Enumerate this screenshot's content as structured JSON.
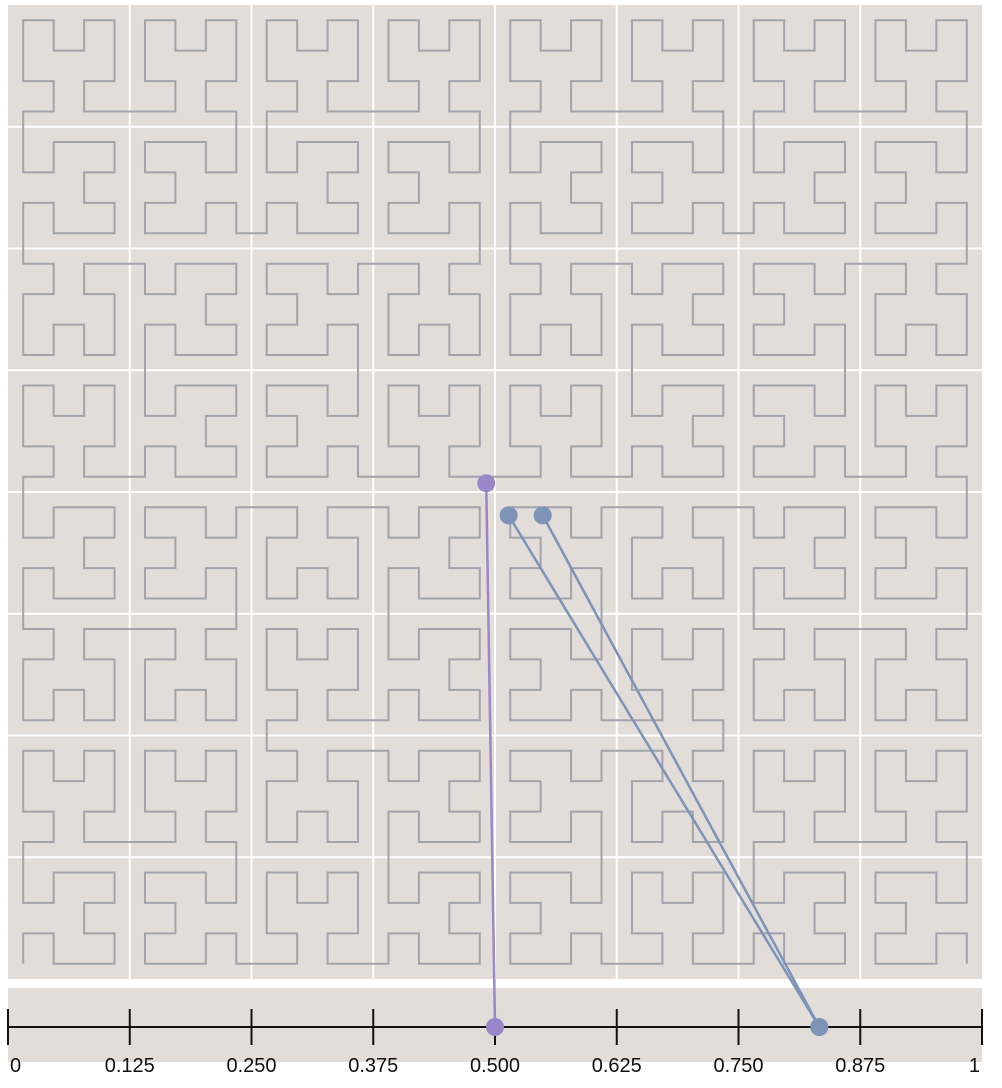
{
  "chart_data": {
    "type": "diagram",
    "curve": "hilbert",
    "curve_order": 5,
    "grid_divisions": 8,
    "axis": {
      "range": [
        0,
        1
      ],
      "tick_values": [
        0,
        0.125,
        0.25,
        0.375,
        0.5,
        0.625,
        0.75,
        0.875,
        1
      ],
      "tick_labels": [
        "0",
        "0.125",
        "0.250",
        "0.375",
        "0.500",
        "0.625",
        "0.750",
        "0.875",
        "1"
      ]
    },
    "mappings": [
      {
        "t": 0.5,
        "point": [
          0.491,
          0.509
        ],
        "color": "#9b86c9"
      },
      {
        "t": 0.833,
        "point": [
          0.514,
          0.476
        ],
        "color": "#7d93b8"
      },
      {
        "t": 0.833,
        "point": [
          0.549,
          0.476
        ],
        "color": "#7d93b8"
      }
    ]
  },
  "colors": {
    "panel_background": "#e2ddd8",
    "grid_line": "#ffffff",
    "curve_stroke": "#a3a3ab",
    "axis": "#111111"
  }
}
